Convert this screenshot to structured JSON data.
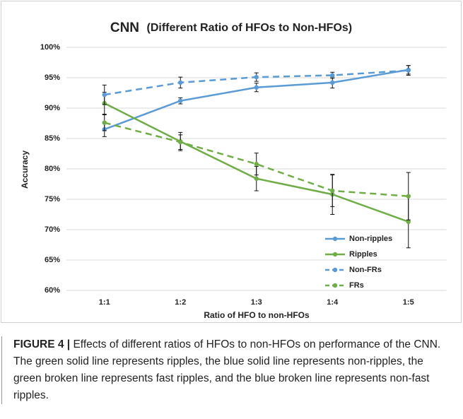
{
  "chart_data": {
    "type": "line",
    "title": "CNN",
    "subtitle": "(Different Ratio of HFOs to Non-HFOs)",
    "x_label": "Ratio of HFO to non-HFOs",
    "y_label": "Accuracy",
    "categories": [
      "1:1",
      "1:2",
      "1:3",
      "1:4",
      "1:5"
    ],
    "ylim": [
      60,
      100
    ],
    "yticks": [
      {
        "value": 60,
        "label": "60%"
      },
      {
        "value": 65,
        "label": "65%"
      },
      {
        "value": 70,
        "label": "70%"
      },
      {
        "value": 75,
        "label": "75%"
      },
      {
        "value": 80,
        "label": "80%"
      },
      {
        "value": 85,
        "label": "85%"
      },
      {
        "value": 90,
        "label": "90%"
      },
      {
        "value": 95,
        "label": "95%"
      },
      {
        "value": 100,
        "label": "100%"
      }
    ],
    "grid": true,
    "legend": "lower-right",
    "series": [
      {
        "name": "Non-ripples",
        "color": "#5b9bd5",
        "dashed": false,
        "values": [
          86.5,
          91.2,
          93.4,
          94.2,
          96.3
        ],
        "errors": [
          1.2,
          0.5,
          0.7,
          0.9,
          0.7
        ]
      },
      {
        "name": "Ripples",
        "color": "#70ad47",
        "dashed": false,
        "values": [
          90.8,
          84.5,
          78.4,
          75.8,
          71.3
        ],
        "errors": [
          1.8,
          1.5,
          2.0,
          3.3,
          4.3
        ]
      },
      {
        "name": "Non-FRs",
        "color": "#5b9bd5",
        "dashed": true,
        "values": [
          92.2,
          94.2,
          95.1,
          95.4,
          96.2
        ],
        "errors": [
          1.6,
          0.9,
          0.7,
          0.5,
          0.8
        ]
      },
      {
        "name": "FRs",
        "color": "#70ad47",
        "dashed": true,
        "values": [
          87.6,
          84.4,
          80.8,
          76.4,
          75.5
        ],
        "errors": [
          1.3,
          1.2,
          1.8,
          2.6,
          3.9
        ]
      }
    ]
  },
  "caption": {
    "label": "FIGURE 4 |",
    "text": "Effects of different ratios of HFOs to non-HFOs on performance of the CNN. The green solid line represents ripples, the blue solid line represents non-ripples, the green broken line represents fast ripples, and the blue broken line represents non-fast ripples."
  }
}
